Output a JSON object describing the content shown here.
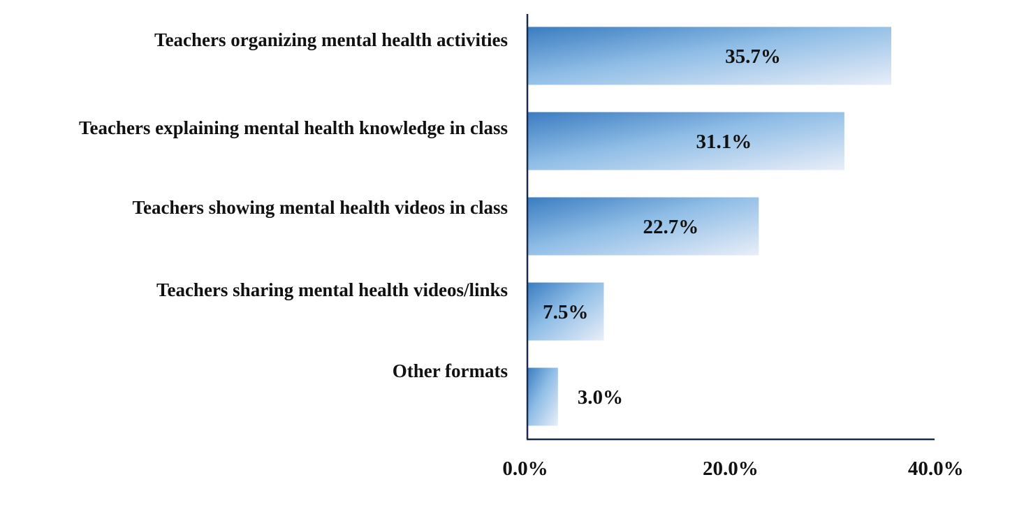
{
  "chart_data": {
    "type": "bar",
    "orientation": "horizontal",
    "categories": [
      "Teachers organizing mental health activities",
      "Teachers explaining mental health knowledge in class",
      "Teachers showing mental health videos in class",
      "Teachers sharing mental health videos/links",
      "Other formats"
    ],
    "values": [
      35.7,
      31.1,
      22.7,
      7.5,
      3.0
    ],
    "value_labels": [
      "35.7%",
      "31.1%",
      "22.7%",
      "7.5%",
      "3.0%"
    ],
    "xlim": [
      0,
      40
    ],
    "ticks": [
      0,
      20,
      40
    ],
    "tick_labels": [
      "0.0%",
      "20.0%",
      "40.0%"
    ],
    "title": "",
    "xlabel": "",
    "ylabel": "",
    "grid": false,
    "legend": "none",
    "colors": {
      "bar_dark": "#3a7cc0",
      "bar_mid": "#8fbde6",
      "bar_light": "#e9eef8",
      "axis": "#1a2a4a",
      "text": "#111111"
    }
  }
}
